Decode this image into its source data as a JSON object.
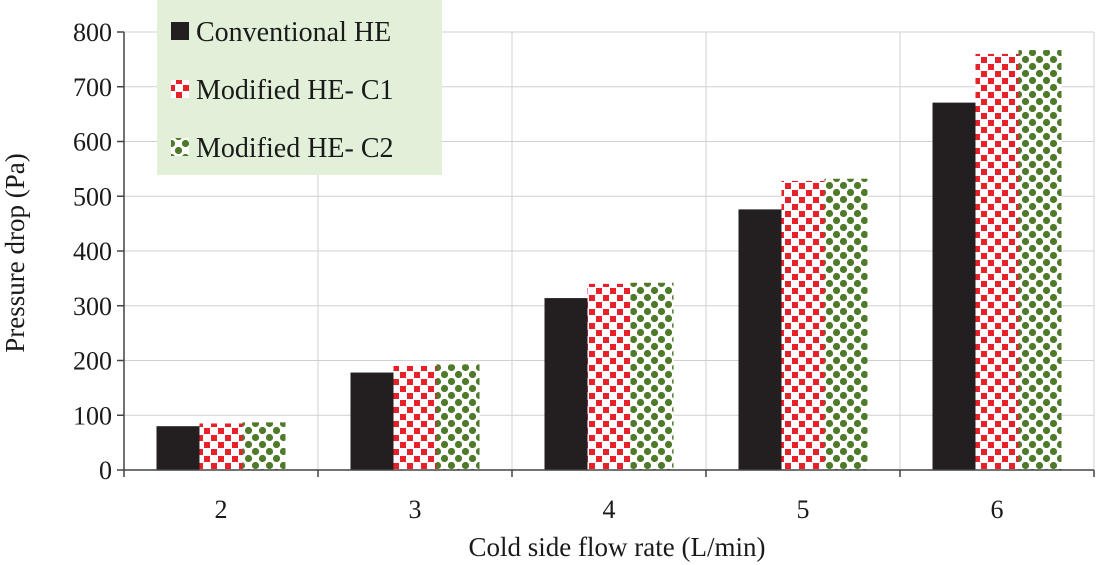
{
  "chart_data": {
    "type": "bar",
    "title": "",
    "xlabel": "Cold side flow rate (L/min)",
    "ylabel": "Pressure drop (Pa)",
    "categories": [
      "2",
      "3",
      "4",
      "5",
      "6"
    ],
    "ylim": [
      0,
      800
    ],
    "yticks": [
      "0",
      "100",
      "200",
      "300",
      "400",
      "500",
      "600",
      "700",
      "800"
    ],
    "grid": true,
    "legend_position": "top-left",
    "series": [
      {
        "name": "Conventional HE",
        "values": [
          80,
          178,
          314,
          476,
          671
        ],
        "color": "#231f20",
        "pattern": "solid"
      },
      {
        "name": "Modified HE- C1",
        "values": [
          85,
          190,
          340,
          528,
          760
        ],
        "color": "#e8202a",
        "pattern": "checker"
      },
      {
        "name": "Modified HE- C2",
        "values": [
          87,
          193,
          342,
          532,
          767
        ],
        "color": "#4f7a2a",
        "pattern": "dots"
      }
    ],
    "legend_background": "#e2f0d9"
  }
}
